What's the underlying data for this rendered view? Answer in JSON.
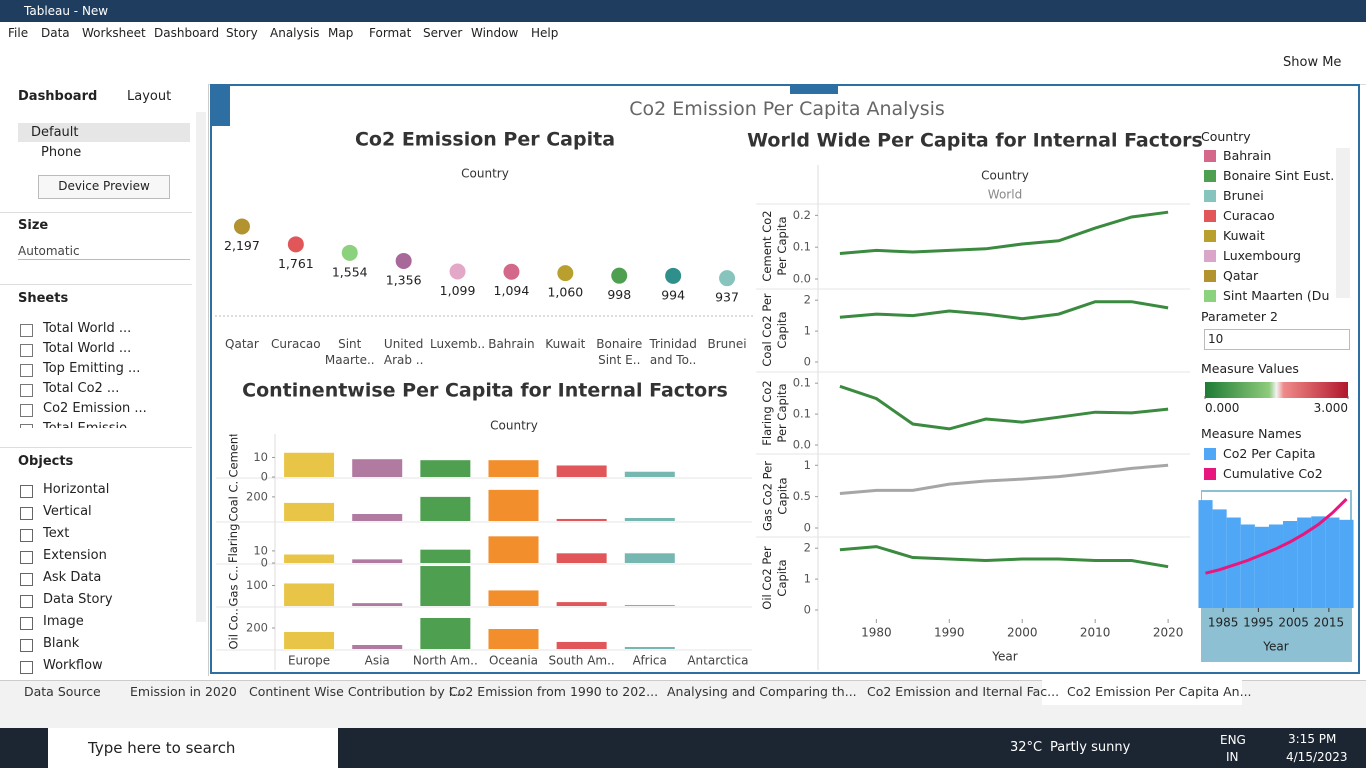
{
  "window": {
    "title": "Tableau - New",
    "menu": [
      "File",
      "Data",
      "Worksheet",
      "Dashboard",
      "Story",
      "Analysis",
      "Map",
      "Format",
      "Server",
      "Window",
      "Help"
    ]
  },
  "toolbar": {
    "show_me": "Show Me"
  },
  "side_panel": {
    "tabs": [
      "Dashboard",
      "Layout"
    ],
    "devices": [
      "Default",
      "Phone"
    ],
    "device_preview": "Device Preview",
    "size_heading": "Size",
    "size_value": "Automatic",
    "sheets_heading": "Sheets",
    "sheets": [
      "Total World ...",
      "Total World ...",
      "Top Emitting ...",
      "Total Co2 ...",
      "Co2 Emission ...",
      "Total Emissio..."
    ],
    "objects_heading": "Objects",
    "objects": [
      "Horizontal",
      "Vertical",
      "Text",
      "Extension",
      "Ask Data",
      "Data Story",
      "Image",
      "Blank",
      "Workflow"
    ]
  },
  "dashboard": {
    "title": "Co2 Emission Per Capita Analysis"
  },
  "chart_data": [
    {
      "type": "dot",
      "title": "Co2 Emission Per Capita",
      "header": "Country",
      "categories": [
        "Qatar",
        "Curacao",
        "Sint Maarte..",
        "United Arab ..",
        "Luxemb..",
        "Bahrain",
        "Kuwait",
        "Bonaire Sint E..",
        "Trinidad and To..",
        "Brunei"
      ],
      "values": [
        2197,
        1761,
        1554,
        1356,
        1099,
        1094,
        1060,
        998,
        994,
        937
      ],
      "value_labels": [
        "2,197",
        "1,761",
        "1,554",
        "1,356",
        "1,099",
        "1,094",
        "1,060",
        "998",
        "994",
        "937"
      ],
      "colors": [
        "#b3932f",
        "#e15759",
        "#8cd17d",
        "#a8689a",
        "#e3a8c8",
        "#d4688a",
        "#b9a02e",
        "#4e9f50",
        "#2f8f8a",
        "#86c4bd"
      ],
      "ylim": [
        600,
        2500
      ]
    },
    {
      "type": "bar_panels",
      "title": "Continentwise Per Capita for Internal Factors",
      "header": "Country",
      "categories": [
        "Europe",
        "Asia",
        "North Am..",
        "Oceania",
        "South Am..",
        "Africa",
        "Antarctica"
      ],
      "colors": [
        "#e8c547",
        "#b07aa1",
        "#4e9f50",
        "#f28e2b",
        "#e15759",
        "#76b7b2",
        null
      ],
      "panels": [
        {
          "label": "Cement Co2 P..",
          "values": [
            12.4,
            9.1,
            8.6,
            8.6,
            5.9,
            2.7,
            null
          ],
          "ylim": [
            0,
            22
          ],
          "yticks": [
            0,
            10
          ]
        },
        {
          "label": "Coal C..",
          "values": [
            150,
            58,
            200,
            258,
            17,
            25,
            null
          ],
          "ylim": [
            0,
            340
          ],
          "yticks": [
            200
          ]
        },
        {
          "label": "Flaring Co2 P..",
          "values": [
            7,
            3,
            11,
            22,
            8,
            8,
            null
          ],
          "ylim": [
            0,
            33
          ],
          "yticks": [
            0,
            10
          ]
        },
        {
          "label": "Gas C..",
          "values": [
            110,
            14,
            195,
            76,
            19,
            5,
            null
          ],
          "ylim": [
            0,
            200
          ],
          "yticks": [
            100
          ]
        },
        {
          "label": "Oil Co..",
          "values": [
            162,
            38,
            295,
            190,
            67,
            19,
            null
          ],
          "ylim": [
            0,
            390
          ],
          "yticks": [
            200
          ]
        }
      ]
    },
    {
      "type": "line_panels",
      "title": "World Wide Per Capita for Internal Factors",
      "header": "Country",
      "subheader": "World",
      "x": [
        1975,
        1980,
        1985,
        1990,
        1995,
        2000,
        2005,
        2010,
        2015,
        2020
      ],
      "xlim": [
        1972,
        2023
      ],
      "xticks": [
        1980,
        1990,
        2000,
        2010,
        2020
      ],
      "xlabel": "Year",
      "panels": [
        {
          "label": "Cement Co2 Per Capita",
          "color": "#3a8a3f",
          "values": [
            0.08,
            0.09,
            0.085,
            0.09,
            0.095,
            0.11,
            0.12,
            0.16,
            0.195,
            0.21
          ],
          "ylim": [
            0,
            0.22
          ],
          "yticks": [
            {
              "value": 0,
              "label": "0.0"
            },
            0.1,
            0.2
          ]
        },
        {
          "label": "Coal Co2 Per Capita",
          "color": "#3a8a3f",
          "values": [
            1.45,
            1.55,
            1.5,
            1.65,
            1.55,
            1.4,
            1.55,
            1.95,
            1.95,
            1.75
          ],
          "ylim": [
            0,
            2.2
          ],
          "yticks": [
            0,
            1,
            2
          ]
        },
        {
          "label": "Flaring Co2 Per Capita",
          "color": "#3a8a3f",
          "values": [
            0.095,
            0.075,
            0.034,
            0.026,
            0.042,
            0.037,
            0.045,
            0.053,
            0.052,
            0.058
          ],
          "ylim": [
            0,
            0.11
          ],
          "yticks": [
            {
              "value": 0,
              "label": "0.0"
            },
            {
              "value": 0.05,
              "label": "0.1"
            },
            0.1
          ]
        },
        {
          "label": "Gas Co2 Per Capita",
          "color": "#a6a6a6",
          "values": [
            0.55,
            0.6,
            0.6,
            0.7,
            0.75,
            0.78,
            0.82,
            0.88,
            0.95,
            1.0
          ],
          "ylim": [
            0,
            1.1
          ],
          "yticks": [
            0,
            0.5,
            1
          ]
        },
        {
          "label": "Oil Co2 Per Capita",
          "color": "#3a8a3f",
          "values": [
            1.95,
            2.05,
            1.7,
            1.65,
            1.6,
            1.65,
            1.65,
            1.6,
            1.6,
            1.4
          ],
          "ylim": [
            0,
            2.2
          ],
          "yticks": [
            0,
            1,
            2
          ]
        }
      ]
    },
    {
      "type": "combo",
      "legend_title": "Measure Names",
      "x": [
        1980,
        1984,
        1988,
        1992,
        1996,
        2000,
        2004,
        2008,
        2012,
        2016,
        2020
      ],
      "xlim": [
        1979,
        2021
      ],
      "xticks": [
        1985,
        1995,
        2005,
        2015
      ],
      "xlabel": "Year",
      "ylim": [
        0,
        1
      ],
      "series": [
        {
          "name": "Co2 Per Capita",
          "color": "#4fa7f5",
          "kind": "bar",
          "values": [
            0.93,
            0.85,
            0.78,
            0.72,
            0.7,
            0.72,
            0.75,
            0.78,
            0.79,
            0.78,
            0.76
          ]
        },
        {
          "name": "Cumulative Co2",
          "color": "#e8177d",
          "kind": "line",
          "values": [
            0.3,
            0.33,
            0.37,
            0.41,
            0.46,
            0.51,
            0.57,
            0.64,
            0.72,
            0.82,
            0.94
          ]
        }
      ]
    }
  ],
  "legends": {
    "country": {
      "title": "Country",
      "items": [
        {
          "name": "Bahrain",
          "color": "#d4688a"
        },
        {
          "name": "Bonaire Sint Eust..",
          "color": "#4e9f50"
        },
        {
          "name": "Brunei",
          "color": "#86c4bd"
        },
        {
          "name": "Curacao",
          "color": "#e15759"
        },
        {
          "name": "Kuwait",
          "color": "#b9a02e"
        },
        {
          "name": "Luxembourg",
          "color": "#d9a6c9"
        },
        {
          "name": "Qatar",
          "color": "#b3932f"
        },
        {
          "name": "Sint Maarten (Du",
          "color": "#8cd17d"
        }
      ]
    },
    "parameter": {
      "title": "Parameter 2",
      "value": 10
    },
    "measure_values": {
      "title": "Measure Values",
      "ticks": [
        {
          "value": 0,
          "label": "0.000"
        },
        {
          "value": 3,
          "label": "3.000"
        }
      ]
    }
  },
  "tabs": [
    "Data Source",
    "Emission in 2020",
    "Continent Wise Contribution by I...",
    "Co2 Emission from 1990 to 202...",
    "Analysing and Comparing th...",
    "Co2 Emission and Iternal Fac...",
    "Co2 Emission Per Capita An..."
  ],
  "taskbar": {
    "search": "Type here to search",
    "temperature": "32°C",
    "weather": "Partly sunny",
    "language": "ENG",
    "region": "IN",
    "time": "3:15 PM",
    "date": "4/15/2023"
  }
}
